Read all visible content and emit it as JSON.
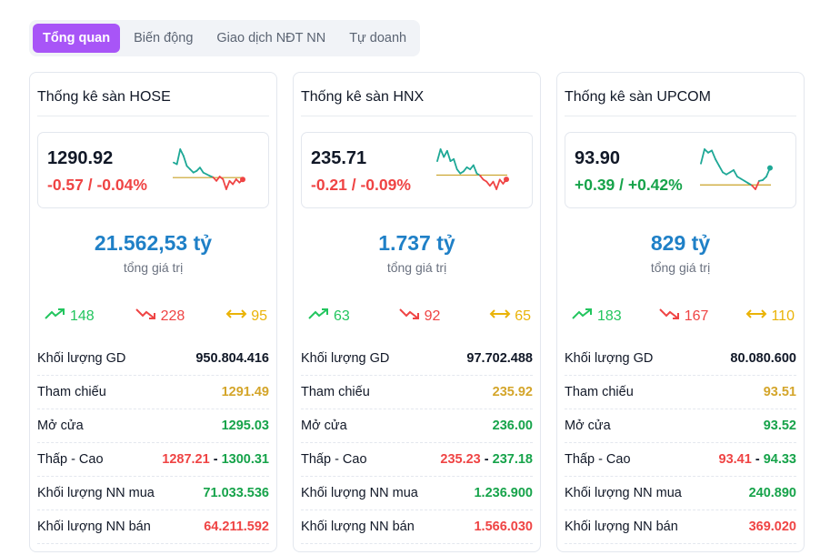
{
  "tabs": [
    {
      "label": "Tổng quan",
      "active": true
    },
    {
      "label": "Biến động"
    },
    {
      "label": "Giao dịch NĐT NN"
    },
    {
      "label": "Tự doanh"
    }
  ],
  "colors": {
    "up": "#22c55e",
    "down": "#ef4444",
    "reference": "#eab308",
    "total": "#1f80c7",
    "accent": "#a855f7",
    "spark_up": "#1ea896"
  },
  "total_label": "tổng giá trị",
  "row_labels": [
    "Khối lượng GD",
    "Tham chiếu",
    "Mở cửa",
    "Thấp - Cao",
    "Khối lượng NN mua",
    "Khối lượng NN bán"
  ],
  "exchanges": [
    {
      "title": "Thống kê sàn HOSE",
      "price": "1290.92",
      "change": "-0.57 / -0.04%",
      "direction": "down",
      "total": "21.562,53 tỷ",
      "up": "148",
      "down": "228",
      "flat": "95",
      "volume": "950.804.416",
      "reference": "1291.49",
      "open": "1295.03",
      "low": "1287.21",
      "high": "1300.31",
      "nn_buy": "71.033.536",
      "nn_sell": "64.211.592",
      "sparkline": {
        "ref": 1291.49,
        "values": [
          1296,
          1295.5,
          1300,
          1298,
          1295,
          1294,
          1293,
          1293.5,
          1294.5,
          1293,
          1292.5,
          1292,
          1291.6,
          1290.5,
          1291.8,
          1291,
          1288,
          1290.5,
          1289.5,
          1291,
          1290,
          1290.92
        ]
      }
    },
    {
      "title": "Thống kê sàn HNX",
      "price": "235.71",
      "change": "-0.21 / -0.09%",
      "direction": "down",
      "total": "1.737 tỷ",
      "up": "63",
      "down": "92",
      "flat": "65",
      "volume": "97.702.488",
      "reference": "235.92",
      "open": "236.00",
      "low": "235.23",
      "high": "237.18",
      "nn_buy": "1.236.900",
      "nn_sell": "1.566.030",
      "sparkline": {
        "ref": 235.92,
        "values": [
          236.6,
          237.18,
          236.8,
          237.1,
          236.6,
          236.7,
          236.2,
          236.0,
          236.1,
          236.3,
          236.2,
          236.4,
          236.0,
          235.9,
          235.7,
          235.6,
          235.4,
          235.6,
          235.23,
          235.7,
          235.5,
          235.71
        ]
      }
    },
    {
      "title": "Thống kê sàn UPCOM",
      "price": "93.90",
      "change": "+0.39 / +0.42%",
      "direction": "up",
      "total": "829 tỷ",
      "up": "183",
      "down": "167",
      "flat": "110",
      "volume": "80.080.600",
      "reference": "93.51",
      "open": "93.52",
      "low": "93.41",
      "high": "94.33",
      "nn_buy": "240.890",
      "nn_sell": "369.020",
      "sparkline": {
        "ref": 93.51,
        "values": [
          94.0,
          94.33,
          94.25,
          94.3,
          94.1,
          93.95,
          93.8,
          93.75,
          93.8,
          93.85,
          93.7,
          93.65,
          93.6,
          93.55,
          93.5,
          93.41,
          93.6,
          93.62,
          93.7,
          93.9
        ]
      }
    }
  ]
}
